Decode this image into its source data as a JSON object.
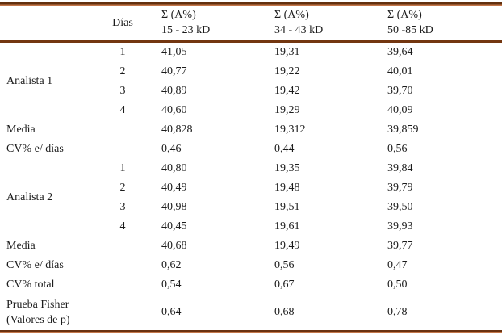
{
  "colors": {
    "rule_brown_dark": "#63300e",
    "rule_brown_light": "#c4774a",
    "text": "#1c1c1c",
    "background": "#ffffff"
  },
  "header": {
    "dias_label": "Días",
    "sigma_cols": [
      {
        "unit": "Σ (A%)",
        "range": "15 - 23 kD"
      },
      {
        "unit": "Σ (A%)",
        "range": "34 - 43 kD"
      },
      {
        "unit": "Σ (A%)",
        "range": "50 -85 kD"
      }
    ]
  },
  "rows": [
    {
      "label": "Analista 1",
      "dia": "1",
      "c1": "41,05",
      "c2": "19,31",
      "c3": "39,64"
    },
    {
      "dia": "2",
      "c1": "40,77",
      "c2": "19,22",
      "c3": "40,01"
    },
    {
      "dia": "3",
      "c1": "40,89",
      "c2": "19,42",
      "c3": "39,70"
    },
    {
      "dia": "4",
      "c1": "40,60",
      "c2": "19,29",
      "c3": "40,09"
    },
    {
      "label": "Media",
      "c1": "40,828",
      "c2": "19,312",
      "c3": "39,859"
    },
    {
      "label": "CV% e/ días",
      "c1": "0,46",
      "c2": "0,44",
      "c3": "0,56"
    },
    {
      "label": "Analista 2",
      "dia": "1",
      "c1": "40,80",
      "c2": "19,35",
      "c3": "39,84"
    },
    {
      "dia": "2",
      "c1": "40,49",
      "c2": "19,48",
      "c3": "39,79"
    },
    {
      "dia": "3",
      "c1": "40,98",
      "c2": "19,51",
      "c3": "39,50"
    },
    {
      "dia": "4",
      "c1": "40,45",
      "c2": "19,61",
      "c3": "39,93"
    },
    {
      "label": "Media",
      "c1": "40,68",
      "c2": "19,49",
      "c3": "39,77"
    },
    {
      "label": "CV% e/ días",
      "c1": "0,62",
      "c2": "0,56",
      "c3": "0,47"
    },
    {
      "label": "CV% total",
      "c1": "0,54",
      "c2": "0,67",
      "c3": "0,50"
    },
    {
      "label": "Prueba Fisher",
      "label2": "(Valores de p)",
      "c1": "0,64",
      "c2": "0,68",
      "c3": "0,78"
    }
  ]
}
